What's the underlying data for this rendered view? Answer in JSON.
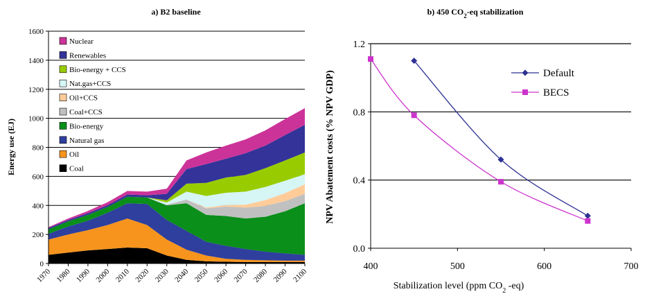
{
  "chart_data": [
    {
      "type": "area",
      "title": "a) B2 baseline",
      "ylabel": "Energy use (EJ)",
      "xlabel": "",
      "ylim": [
        0,
        1600
      ],
      "yticks": [
        0,
        200,
        400,
        600,
        800,
        1000,
        1200,
        1400,
        1600
      ],
      "xticks": [
        1970,
        1980,
        1990,
        2000,
        2010,
        2020,
        2030,
        2040,
        2050,
        2060,
        2070,
        2080,
        2090,
        2100
      ],
      "grid": "horizontal",
      "legend_placement": "top-left",
      "x": [
        1970,
        1980,
        1990,
        2000,
        2010,
        2020,
        2030,
        2040,
        2050,
        2060,
        2070,
        2080,
        2090,
        2100
      ],
      "series": [
        {
          "name": "Coal",
          "color": "#000000",
          "values": [
            60,
            75,
            90,
            100,
            110,
            105,
            55,
            25,
            15,
            12,
            10,
            10,
            10,
            10
          ]
        },
        {
          "name": "Oil",
          "color": "#f7941d",
          "values": [
            105,
            125,
            140,
            165,
            200,
            160,
            110,
            70,
            40,
            20,
            15,
            12,
            10,
            10
          ]
        },
        {
          "name": "Natural gas",
          "color": "#2e3f9e",
          "values": [
            40,
            55,
            65,
            85,
            105,
            145,
            135,
            130,
            95,
            90,
            75,
            60,
            50,
            40
          ]
        },
        {
          "name": "Bio-energy",
          "color": "#0a8f1a",
          "values": [
            30,
            35,
            40,
            40,
            45,
            45,
            100,
            190,
            185,
            205,
            210,
            240,
            290,
            355
          ]
        },
        {
          "name": "Coal+CCS",
          "color": "#c0c0c0",
          "values": [
            0,
            0,
            0,
            0,
            0,
            0,
            5,
            25,
            45,
            65,
            75,
            75,
            70,
            65
          ]
        },
        {
          "name": "Oil+CCS",
          "color": "#ffcc99",
          "values": [
            0,
            0,
            0,
            0,
            0,
            0,
            0,
            0,
            5,
            10,
            20,
            40,
            55,
            65
          ]
        },
        {
          "name": "Nat.gas+CCS",
          "color": "#d6f5f5",
          "values": [
            0,
            0,
            0,
            0,
            0,
            0,
            15,
            55,
            80,
            85,
            90,
            90,
            85,
            70
          ]
        },
        {
          "name": "Bio-energy + CCS",
          "color": "#99cc00",
          "values": [
            0,
            0,
            0,
            0,
            0,
            0,
            15,
            55,
            90,
            105,
            115,
            130,
            140,
            150
          ]
        },
        {
          "name": "Renewables",
          "color": "#333399",
          "values": [
            10,
            10,
            12,
            12,
            15,
            15,
            45,
            100,
            130,
            130,
            150,
            155,
            175,
            190
          ]
        },
        {
          "name": "Nuclear",
          "color": "#cc3399",
          "values": [
            5,
            10,
            15,
            20,
            25,
            25,
            35,
            60,
            80,
            90,
            95,
            105,
            110,
            115
          ]
        }
      ]
    },
    {
      "type": "line",
      "title": "b) 450 CO₂-eq stabilization",
      "title_parts": {
        "pre": "b) 450 CO",
        "sub": "2",
        "post": "-eq stabilization"
      },
      "xlabel": "Stabilization level (ppm CO₂ -eq)",
      "xlabel_parts": {
        "pre": "Stabilization level (ppm CO",
        "sub": "2",
        "post": " -eq)"
      },
      "ylabel": "NPV Abatement costs (% NPV GDP)",
      "xlim": [
        400,
        700
      ],
      "ylim": [
        0,
        1.2
      ],
      "xticks": [
        400,
        500,
        600,
        700
      ],
      "yticks": [
        "0.0",
        "0.4",
        "0.8",
        "1.2"
      ],
      "grid": "horizontal",
      "legend_placement": "top-right",
      "series": [
        {
          "name": "Default",
          "color": "#2e3192",
          "marker": "diamond",
          "x": [
            450,
            550,
            650
          ],
          "values": [
            1.1,
            0.52,
            0.19
          ]
        },
        {
          "name": "BECS",
          "color": "#cc33cc",
          "marker": "square",
          "x": [
            400,
            450,
            550,
            650
          ],
          "values": [
            1.11,
            0.78,
            0.39,
            0.16
          ]
        }
      ]
    }
  ]
}
